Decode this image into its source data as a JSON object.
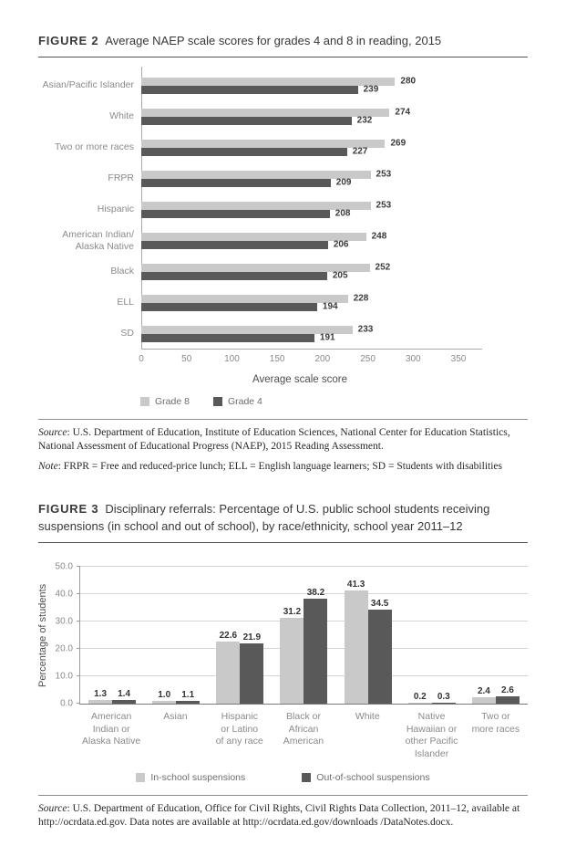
{
  "figure2": {
    "label": "FIGURE 2",
    "title": "Average NAEP scale scores for grades 4 and 8 in reading, 2015",
    "source_label": "Source",
    "source_text": ": U.S. Department of Education, Institute of Education Sciences, National Center for Education Statistics, National Assessment of Educational Progress (NAEP), 2015 Reading Assessment.",
    "note_label": "Note",
    "note_text": ": FRPR = Free and reduced-price lunch; ELL = English language learners; SD = Students with disabilities"
  },
  "figure3": {
    "label": "FIGURE 3",
    "title": "Disciplinary referrals: Percentage of U.S. public school students receiving suspensions (in school and out of school), by race/ethnicity, school year 2011–12",
    "source_label": "Source",
    "source_text": ": U.S. Department of Education, Office for Civil Rights, Civil Rights Data Collection, 2011–12, available at http://ocrdata.ed.gov. Data notes are available at http://ocrdata.ed.gov/downloads /DataNotes.docx."
  },
  "chart_data": [
    {
      "type": "bar",
      "orientation": "horizontal",
      "title": "Average NAEP scale scores for grades 4 and 8 in reading, 2015",
      "categories": [
        "Asian/Pacific Islander",
        "White",
        "Two or more races",
        "FRPR",
        "Hispanic",
        "American Indian/\nAlaska Native",
        "Black",
        "ELL",
        "SD"
      ],
      "series": [
        {
          "name": "Grade 8",
          "color": "#c9c9c9",
          "values": [
            280,
            274,
            269,
            253,
            253,
            248,
            252,
            228,
            233
          ]
        },
        {
          "name": "Grade 4",
          "color": "#595959",
          "values": [
            239,
            232,
            227,
            209,
            208,
            206,
            205,
            194,
            191
          ]
        }
      ],
      "xlabel": "Average scale score",
      "xlim": [
        0,
        350
      ],
      "xticks": [
        0,
        50,
        100,
        150,
        200,
        250,
        300,
        350
      ],
      "label_decimals": 0,
      "grid": false,
      "legend_position": "bottom-left"
    },
    {
      "type": "bar",
      "orientation": "vertical",
      "title": "Disciplinary referrals: Percentage of U.S. public school students receiving suspensions (in school and out of school), by race/ethnicity, school year 2011–12",
      "categories": [
        "American\nIndian or\nAlaska Native",
        "Asian",
        "Hispanic\nor Latino\nof any race",
        "Black or\nAfrican\nAmerican",
        "White",
        "Native\nHawaiian or\nother Pacific\nIslander",
        "Two or\nmore races"
      ],
      "series": [
        {
          "name": "In-school suspensions",
          "color": "#c9c9c9",
          "values": [
            1.3,
            1.0,
            22.6,
            31.2,
            41.3,
            0.2,
            2.4
          ]
        },
        {
          "name": "Out-of-school suspensions",
          "color": "#595959",
          "values": [
            1.4,
            1.1,
            21.9,
            38.2,
            34.5,
            0.3,
            2.6
          ]
        }
      ],
      "ylabel": "Percentage of students",
      "ylim": [
        0,
        50
      ],
      "yticks": [
        "0.0",
        "10.0",
        "20.0",
        "30.0",
        "40.0",
        "50.0"
      ],
      "label_decimals": 1,
      "grid": true,
      "legend_position": "bottom-center"
    }
  ]
}
